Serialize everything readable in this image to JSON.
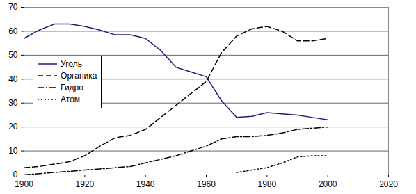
{
  "chart_data": {
    "type": "line",
    "x": [
      1900,
      1905,
      1910,
      1915,
      1920,
      1925,
      1930,
      1935,
      1940,
      1945,
      1950,
      1955,
      1960,
      1965,
      1970,
      1975,
      1980,
      1985,
      1990,
      1995,
      2000
    ],
    "series": [
      {
        "name": "Уголь",
        "color": "#1f1f7a",
        "line_style": "solid",
        "values": [
          57,
          60.5,
          63,
          63,
          62,
          60.5,
          58.5,
          58.5,
          57,
          52,
          45,
          43,
          41,
          31,
          24,
          24.5,
          26,
          25.5,
          25,
          24,
          23
        ]
      },
      {
        "name": "Органика",
        "color": "#000000",
        "line_style": "dashed",
        "values": [
          3,
          3.5,
          4.5,
          5.5,
          8,
          12,
          15.5,
          16.5,
          19,
          24,
          29,
          34,
          39,
          51,
          58,
          61,
          62,
          60,
          56,
          56,
          57
        ]
      },
      {
        "name": "Гидро",
        "color": "#000000",
        "line_style": "dashdot",
        "values": [
          0,
          0.5,
          1,
          1.5,
          2,
          2.5,
          3,
          3.5,
          5,
          6.5,
          8,
          10,
          12,
          15,
          16,
          16,
          16.5,
          17.5,
          19,
          19.5,
          20
        ]
      },
      {
        "name": "Атом",
        "color": "#000000",
        "line_style": "dotted",
        "values": [
          null,
          null,
          null,
          null,
          null,
          null,
          null,
          null,
          null,
          null,
          null,
          null,
          null,
          null,
          1,
          2,
          3,
          5,
          7.5,
          8,
          8
        ]
      }
    ],
    "xlim": [
      1900,
      2020
    ],
    "xticks": [
      1900,
      1920,
      1940,
      1960,
      1980,
      2000,
      2020
    ],
    "ylim": [
      0,
      70
    ],
    "yticks": [
      0,
      10,
      20,
      30,
      40,
      50,
      60,
      70
    ],
    "grid": true,
    "legend": "left"
  }
}
